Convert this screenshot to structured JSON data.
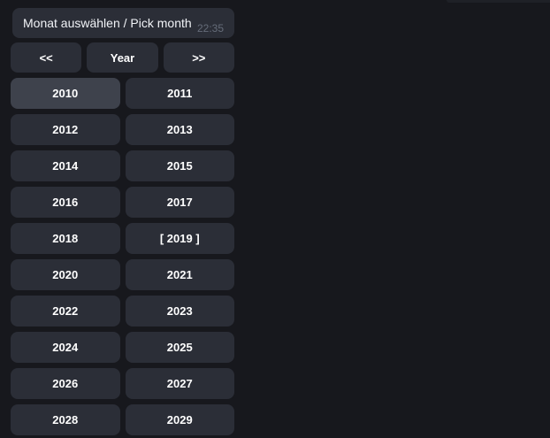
{
  "theme": {
    "page_background": "#17181d",
    "bubble_background": "#2b2e37",
    "button_background": "#2b2e37",
    "button_highlight_background": "#3e424c",
    "button_text_color": "#ffffff",
    "message_text_color": "#f1f3f7",
    "timestamp_color": "#656c79"
  },
  "message": {
    "text": "Monat auswählen / Pick month",
    "time": "22:35"
  },
  "keyboard": {
    "nav": [
      {
        "name": "prev-page-button",
        "label": "<<"
      },
      {
        "name": "year-mode-button",
        "label": "Year"
      },
      {
        "name": "next-page-button",
        "label": ">>"
      }
    ],
    "years": [
      {
        "value": 2010,
        "label": "2010",
        "highlighted": true
      },
      {
        "value": 2011,
        "label": "2011"
      },
      {
        "value": 2012,
        "label": "2012"
      },
      {
        "value": 2013,
        "label": "2013"
      },
      {
        "value": 2014,
        "label": "2014"
      },
      {
        "value": 2015,
        "label": "2015"
      },
      {
        "value": 2016,
        "label": "2016"
      },
      {
        "value": 2017,
        "label": "2017"
      },
      {
        "value": 2018,
        "label": "2018"
      },
      {
        "value": 2019,
        "label": "[ 2019 ]",
        "current": true
      },
      {
        "value": 2020,
        "label": "2020"
      },
      {
        "value": 2021,
        "label": "2021"
      },
      {
        "value": 2022,
        "label": "2022"
      },
      {
        "value": 2023,
        "label": "2023"
      },
      {
        "value": 2024,
        "label": "2024"
      },
      {
        "value": 2025,
        "label": "2025"
      },
      {
        "value": 2026,
        "label": "2026"
      },
      {
        "value": 2027,
        "label": "2027"
      },
      {
        "value": 2028,
        "label": "2028"
      },
      {
        "value": 2029,
        "label": "2029"
      }
    ]
  }
}
